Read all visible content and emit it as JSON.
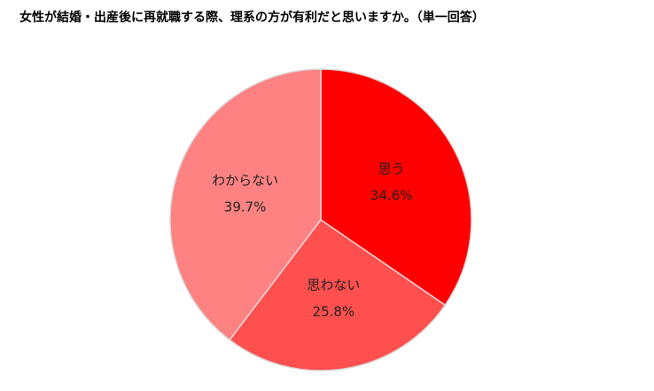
{
  "chart_data": {
    "type": "pie",
    "title": "女性が結婚・出産後に再就職する際、理系の方が有利だと思いますか。（単一回答）",
    "categories": [
      "思う",
      "思わない",
      "わからない"
    ],
    "values": [
      34.6,
      25.8,
      39.7
    ],
    "value_labels": [
      "34.6%",
      "25.8%",
      "39.7%"
    ],
    "colors": [
      "#ff0000",
      "#ff4f4f",
      "#ff8282"
    ]
  }
}
